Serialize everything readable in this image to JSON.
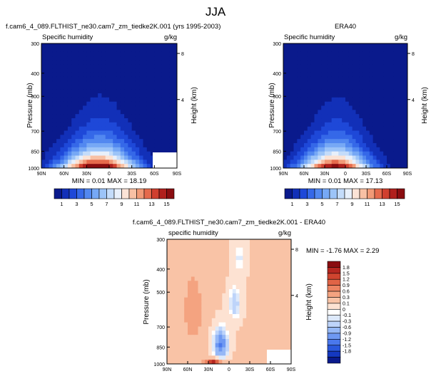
{
  "page_title": "JJA",
  "colors": {
    "page_background": "#ffffff",
    "missing_data": "#ffffff",
    "humidity_palette": [
      "#0a1a8c",
      "#1230b8",
      "#1e48d8",
      "#3568e8",
      "#5288f0",
      "#76a8f5",
      "#9cc4f8",
      "#c4dcfa",
      "#e8f0fb",
      "#fbe3d6",
      "#f8c0a4",
      "#f19a77",
      "#e56a4c",
      "#d0402f",
      "#b01f1c",
      "#8a0d10"
    ],
    "difference_palette": [
      "#0a1a8c",
      "#1438c0",
      "#2a58dc",
      "#4a78ec",
      "#6e98f2",
      "#96b8f6",
      "#bed4fa",
      "#dde9fb",
      "#ffffff",
      "#fde2d2",
      "#f9c3a6",
      "#f4a380",
      "#ec8462",
      "#e06446",
      "#cf442f",
      "#b52720",
      "#8a0d10"
    ]
  },
  "chart_data": [
    {
      "id": "model",
      "type": "heatmap",
      "title": "f.cam6_4_089.FLTHIST_ne30.cam7_zm_tiedke2K.001 (yrs 1995-2003)",
      "left_label": "Specific humidity",
      "units": "g/kg",
      "ylabel": "Pressure (mb)",
      "y2label": "Height (km)",
      "x_ticks": [
        "90N",
        "60N",
        "30N",
        "0",
        "30S",
        "60S",
        "90S"
      ],
      "y_ticks": [
        "300",
        "400",
        "500",
        "700",
        "850",
        "1000"
      ],
      "y2_ticks": [
        "8",
        "4"
      ],
      "stats": "MIN =  0.01  MAX = 18.19",
      "field_min": 0.01,
      "field_max": 18.19,
      "contour_levels": [
        1,
        2,
        3,
        4,
        5,
        6,
        7,
        8,
        9,
        10,
        11,
        12,
        13,
        14,
        15
      ],
      "colorbar_labels": [
        "1",
        "3",
        "5",
        "7",
        "9",
        "11",
        "13",
        "15"
      ]
    },
    {
      "id": "era40",
      "type": "heatmap",
      "title": "ERA40",
      "left_label": "Specific humidity",
      "units": "g/kg",
      "ylabel": "Pressure (mb)",
      "y2label": "Height (km)",
      "x_ticks": [
        "90N",
        "60N",
        "30N",
        "0",
        "30S",
        "60S",
        "90S"
      ],
      "y_ticks": [
        "300",
        "400",
        "500",
        "700",
        "850",
        "1000"
      ],
      "y2_ticks": [
        "8",
        "4"
      ],
      "stats": "MIN =  0.01  MAX = 17.13",
      "field_min": 0.01,
      "field_max": 17.13,
      "contour_levels": [
        1,
        2,
        3,
        4,
        5,
        6,
        7,
        8,
        9,
        10,
        11,
        12,
        13,
        14,
        15
      ],
      "colorbar_labels": [
        "1",
        "3",
        "5",
        "7",
        "9",
        "11",
        "13",
        "15"
      ]
    },
    {
      "id": "difference",
      "type": "heatmap",
      "title": "f.cam6_4_089.FLTHIST_ne30.cam7_zm_tiedke2K.001 - ERA40",
      "left_label": "specific humidity",
      "units": "g/kg",
      "ylabel": "Pressure (mb)",
      "y2label": "Height (km)",
      "x_ticks": [
        "90N",
        "60N",
        "30N",
        "0",
        "30S",
        "60S",
        "90S"
      ],
      "y_ticks": [
        "300",
        "400",
        "500",
        "700",
        "850",
        "1000"
      ],
      "y2_ticks": [
        "8",
        "4"
      ],
      "stats": "MIN = -1.76  MAX =  2.29",
      "field_min": -1.76,
      "field_max": 2.29,
      "contour_levels": [
        -1.8,
        -1.5,
        -1.2,
        -0.9,
        -0.6,
        -0.3,
        -0.1,
        0,
        0.1,
        0.3,
        0.6,
        0.9,
        1.2,
        1.5,
        1.8
      ],
      "colorbar_labels": [
        "1.8",
        "1.5",
        "1.2",
        "0.9",
        "0.6",
        "0.3",
        "0.1",
        "0",
        "-0.1",
        "-0.3",
        "-0.6",
        "-0.9",
        "-1.2",
        "-1.5",
        "-1.8"
      ]
    }
  ]
}
